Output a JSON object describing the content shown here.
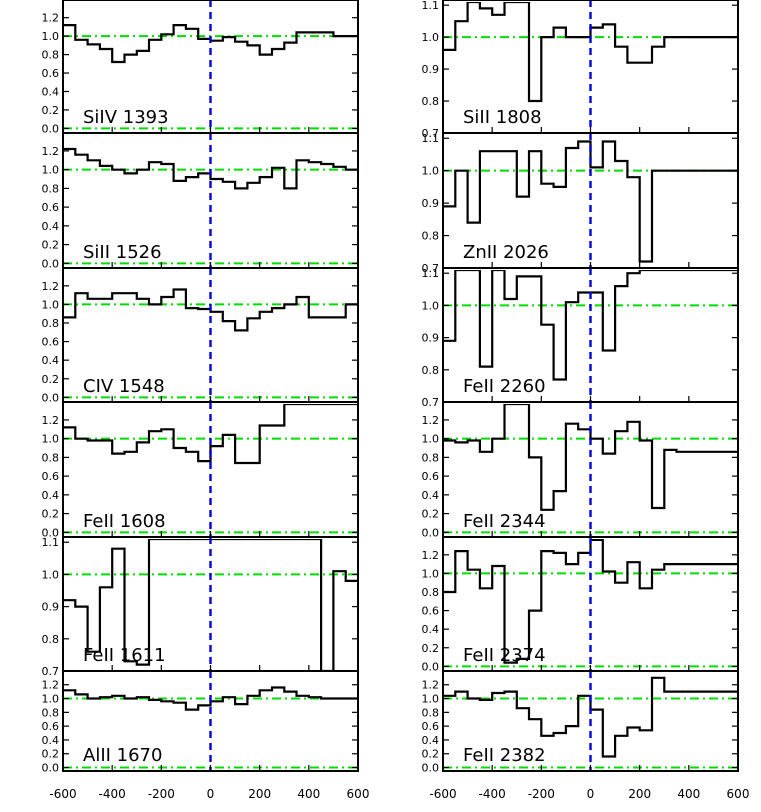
{
  "chart_data": {
    "type": "line",
    "xlim": [
      -600,
      600
    ],
    "x_ticks": [
      "-600",
      "-400",
      "-200",
      "0",
      "200",
      "400",
      "600"
    ],
    "reference_x": 0,
    "colors": {
      "histogram": "#000000",
      "reference_line": "#0000dd",
      "continuum": "#00dd00"
    },
    "bins": [
      -600,
      -550,
      -500,
      -450,
      -400,
      -350,
      -300,
      -250,
      -200,
      -150,
      -100,
      -50,
      0,
      50,
      100,
      150,
      200,
      250,
      300,
      350,
      400,
      450,
      500,
      550,
      600
    ],
    "panels": [
      {
        "label": "SiIV 1393",
        "column": "left",
        "ylim": [
          -0.05,
          1.37
        ],
        "y_ticks": [
          "0.0",
          "0.2",
          "0.4",
          "0.6",
          "0.8",
          "1.0",
          "1.2"
        ],
        "continuum": [
          0.0,
          1.0
        ],
        "values": [
          1.12,
          0.96,
          0.91,
          0.86,
          0.72,
          0.8,
          0.84,
          0.96,
          1.02,
          1.12,
          1.08,
          0.97,
          0.95,
          0.99,
          0.94,
          0.9,
          0.8,
          0.86,
          0.93,
          1.04,
          1.04,
          1.04,
          1.0,
          1.0
        ]
      },
      {
        "label": "SiII 1526",
        "column": "left",
        "ylim": [
          -0.05,
          1.37
        ],
        "y_ticks": [
          "0.0",
          "0.2",
          "0.4",
          "0.6",
          "0.8",
          "1.0",
          "1.2"
        ],
        "continuum": [
          0.0,
          1.0
        ],
        "values": [
          1.22,
          1.16,
          1.1,
          1.04,
          1.0,
          0.96,
          1.0,
          1.08,
          1.06,
          0.88,
          0.92,
          0.96,
          0.9,
          0.87,
          0.8,
          0.86,
          0.92,
          1.02,
          0.8,
          1.1,
          1.08,
          1.06,
          1.03,
          1.0
        ]
      },
      {
        "label": "CIV 1548",
        "column": "left",
        "ylim": [
          -0.05,
          1.37
        ],
        "y_ticks": [
          "0.0",
          "0.2",
          "0.4",
          "0.6",
          "0.8",
          "1.0",
          "1.2"
        ],
        "continuum": [
          0.0,
          1.0
        ],
        "values": [
          0.86,
          1.12,
          1.06,
          1.06,
          1.12,
          1.12,
          1.06,
          1.0,
          1.08,
          1.16,
          0.96,
          0.95,
          0.92,
          0.82,
          0.72,
          0.85,
          0.92,
          0.96,
          1.0,
          1.08,
          0.86,
          0.86,
          0.86,
          1.0
        ]
      },
      {
        "label": "FeII 1608",
        "column": "left",
        "ylim": [
          -0.05,
          1.37
        ],
        "y_ticks": [
          "0.0",
          "0.2",
          "0.4",
          "0.6",
          "0.8",
          "1.0",
          "1.2"
        ],
        "continuum": [
          0.0,
          1.0
        ],
        "values": [
          1.12,
          1.0,
          0.98,
          0.98,
          0.84,
          0.86,
          0.96,
          1.08,
          1.1,
          0.9,
          0.86,
          0.76,
          0.92,
          1.04,
          0.74,
          0.74,
          1.14,
          1.14,
          1.37,
          1.37,
          1.37,
          1.37,
          1.37,
          1.37
        ]
      },
      {
        "label": "FeII 1611",
        "column": "left",
        "ylim": [
          0.7,
          1.11
        ],
        "y_ticks": [
          "0.7",
          "0.8",
          "0.9",
          "1.0",
          "1.1"
        ],
        "continuum": [
          0.7,
          1.0
        ],
        "values": [
          0.92,
          0.9,
          0.76,
          0.96,
          1.08,
          0.73,
          0.72,
          1.11,
          1.11,
          1.11,
          1.11,
          1.11,
          1.11,
          1.11,
          1.11,
          1.11,
          1.11,
          1.11,
          1.11,
          1.11,
          1.11,
          0.7,
          1.01,
          0.98
        ]
      },
      {
        "label": "AlII 1670",
        "column": "left",
        "ylim": [
          -0.05,
          1.37
        ],
        "y_ticks": [
          "0.0",
          "0.2",
          "0.4",
          "0.6",
          "0.8",
          "1.0",
          "1.2"
        ],
        "continuum": [
          0.0,
          1.0
        ],
        "values": [
          1.12,
          1.06,
          1.0,
          1.02,
          1.04,
          1.0,
          1.02,
          0.98,
          0.96,
          0.94,
          0.84,
          0.9,
          0.96,
          1.02,
          0.92,
          1.04,
          1.12,
          1.16,
          1.1,
          1.04,
          1.02,
          1.0,
          1.0,
          1.0
        ]
      },
      {
        "label": "SiII 1808",
        "column": "right",
        "ylim": [
          0.7,
          1.11
        ],
        "y_ticks": [
          "0.7",
          "0.8",
          "0.9",
          "1.0",
          "1.1"
        ],
        "continuum": [
          0.7,
          1.0
        ],
        "values": [
          0.96,
          1.05,
          1.11,
          1.09,
          1.07,
          1.11,
          1.11,
          0.8,
          1.0,
          1.03,
          1.0,
          1.0,
          1.03,
          1.04,
          0.97,
          0.92,
          0.92,
          0.97,
          1.0,
          1.0,
          1.0,
          1.0,
          1.0,
          1.0
        ]
      },
      {
        "label": "ZnII 2026",
        "column": "right",
        "ylim": [
          0.7,
          1.11
        ],
        "y_ticks": [
          "0.7",
          "0.8",
          "0.9",
          "1.0",
          "1.1"
        ],
        "continuum": [
          0.7,
          1.0
        ],
        "values": [
          0.89,
          1.0,
          0.84,
          1.06,
          1.06,
          1.06,
          0.92,
          1.06,
          0.96,
          0.95,
          1.07,
          1.09,
          1.01,
          1.09,
          1.03,
          0.98,
          0.72,
          1.0,
          1.0,
          1.0,
          1.0,
          1.0,
          1.0,
          1.0
        ]
      },
      {
        "label": "FeII 2260",
        "column": "right",
        "ylim": [
          0.7,
          1.11
        ],
        "y_ticks": [
          "0.7",
          "0.8",
          "0.9",
          "1.0",
          "1.1"
        ],
        "continuum": [
          0.7,
          1.0
        ],
        "values": [
          0.89,
          1.11,
          1.11,
          0.81,
          1.11,
          1.02,
          1.09,
          1.09,
          0.94,
          0.77,
          1.01,
          1.04,
          1.04,
          0.86,
          1.06,
          1.1,
          1.11,
          1.11,
          1.11,
          1.11,
          1.11,
          1.11,
          1.11,
          1.11
        ]
      },
      {
        "label": "FeII 2344",
        "column": "right",
        "ylim": [
          -0.05,
          1.37
        ],
        "y_ticks": [
          "0.0",
          "0.2",
          "0.4",
          "0.6",
          "0.8",
          "1.0",
          "1.2"
        ],
        "continuum": [
          0.0,
          1.0
        ],
        "values": [
          0.98,
          0.96,
          0.98,
          0.86,
          1.0,
          1.37,
          1.37,
          0.8,
          0.24,
          0.44,
          1.16,
          1.1,
          1.0,
          0.84,
          1.08,
          1.18,
          0.98,
          0.26,
          0.88,
          0.86,
          0.86,
          0.86,
          0.86,
          0.86
        ]
      },
      {
        "label": "FeII 2374",
        "column": "right",
        "ylim": [
          -0.05,
          1.37
        ],
        "y_ticks": [
          "0.0",
          "0.2",
          "0.4",
          "0.6",
          "0.8",
          "1.0",
          "1.2"
        ],
        "continuum": [
          0.0,
          1.0
        ],
        "values": [
          0.8,
          1.24,
          1.04,
          0.84,
          1.08,
          0.04,
          0.08,
          0.6,
          1.24,
          1.22,
          1.1,
          1.22,
          1.36,
          1.02,
          0.9,
          1.12,
          0.84,
          1.04,
          1.1,
          1.1,
          1.1,
          1.1,
          1.1,
          1.1
        ]
      },
      {
        "label": "FeII 2382",
        "column": "right",
        "ylim": [
          -0.05,
          1.37
        ],
        "y_ticks": [
          "0.0",
          "0.2",
          "0.4",
          "0.6",
          "0.8",
          "1.0",
          "1.2"
        ],
        "continuum": [
          0.0,
          1.0
        ],
        "values": [
          1.04,
          1.1,
          1.0,
          0.98,
          1.08,
          1.1,
          0.86,
          0.7,
          0.46,
          0.5,
          0.6,
          1.04,
          0.84,
          0.16,
          0.46,
          0.58,
          0.54,
          1.3,
          1.1,
          1.1,
          1.1,
          1.1,
          1.1,
          1.1
        ]
      }
    ]
  }
}
